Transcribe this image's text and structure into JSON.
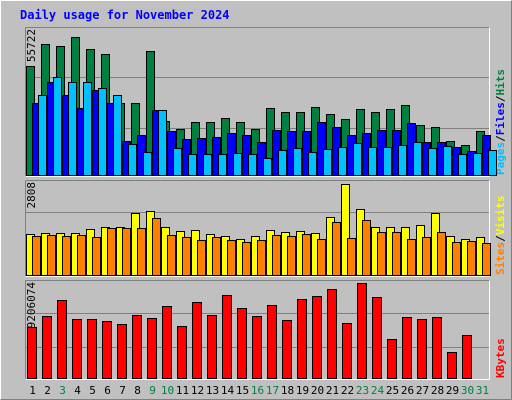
{
  "chart_data": {
    "type": "bar",
    "title": "Daily usage for November 2024",
    "categories": [
      "1",
      "2",
      "3",
      "4",
      "5",
      "6",
      "7",
      "8",
      "9",
      "10",
      "11",
      "12",
      "13",
      "14",
      "15",
      "16",
      "17",
      "18",
      "19",
      "20",
      "21",
      "22",
      "23",
      "24",
      "25",
      "26",
      "27",
      "28",
      "29",
      "30",
      "31"
    ],
    "weekend_days": [
      "3",
      "9",
      "10",
      "16",
      "17",
      "23",
      "24",
      "30",
      "31"
    ],
    "panels": [
      {
        "id": "pages-files-hits",
        "ylabel_parts": [
          "Pages",
          "Files",
          "Hits"
        ],
        "ymax_label": "55722",
        "ylim": [
          0,
          55722
        ],
        "series": [
          {
            "name": "Hits",
            "color": "#008040",
            "values": [
              41900,
              50200,
              49500,
              53000,
              48400,
              46500,
              28000,
              28000,
              47600,
              21000,
              18000,
              20700,
              20700,
              22000,
              20700,
              17900,
              26000,
              24300,
              24300,
              26200,
              23700,
              21800,
              25600,
              24300,
              25600,
              27000,
              19500,
              18800,
              13200,
              11800,
              17200
            ]
          },
          {
            "name": "Files",
            "color": "#0000ff",
            "values": [
              28000,
              36000,
              31000,
              26000,
              33000,
              28000,
              13300,
              15800,
              25000,
              17000,
              14000,
              14600,
              14800,
              16600,
              15500,
              12800,
              17400,
              17100,
              17100,
              20600,
              18800,
              15800,
              16600,
              17500,
              17500,
              20200,
              13100,
              12800,
              11000,
              9600,
              15500
            ]
          },
          {
            "name": "Pages",
            "color": "#00c0ff",
            "values": [
              30800,
              37700,
              35800,
              35800,
              33500,
              30900,
              12300,
              9000,
              25200,
              10600,
              8300,
              8300,
              8500,
              8600,
              8500,
              6900,
              9900,
              10500,
              9300,
              10300,
              11100,
              12600,
              11000,
              11200,
              11800,
              13100,
              10600,
              11300,
              8300,
              8600,
              10100
            ]
          }
        ]
      },
      {
        "id": "visits-sites",
        "ylabel_parts": [
          "Sites",
          "Visits"
        ],
        "ymax_label": "2808",
        "ylim": [
          0,
          2808
        ],
        "series": [
          {
            "name": "Visits",
            "color": "#ffff00",
            "values": [
              1280,
              1310,
              1310,
              1310,
              1420,
              1490,
              1480,
              1890,
              1970,
              1480,
              1350,
              1390,
              1280,
              1210,
              1130,
              1210,
              1380,
              1340,
              1350,
              1290,
              1770,
              2770,
              2020,
              1490,
              1490,
              1480,
              1550,
              1890,
              1210,
              1130,
              1180
            ]
          },
          {
            "name": "Sites",
            "color": "#ff8000",
            "values": [
              1200,
              1230,
              1220,
              1230,
              1190,
              1440,
              1440,
              1440,
              1740,
              1230,
              1180,
              1100,
              1180,
              1090,
              1030,
              1090,
              1250,
              1200,
              1270,
              1110,
              1620,
              1140,
              1700,
              1340,
              1340,
              1130,
              1180,
              1340,
              1030,
              1050,
              990
            ]
          }
        ]
      },
      {
        "id": "kbytes",
        "ylabel_parts": [
          "KBytes"
        ],
        "ymax_label": "9206074",
        "ylim": [
          0,
          9206074
        ],
        "series": [
          {
            "name": "KBytes",
            "color": "#ff0000",
            "values": [
              5000000,
              6050000,
              7530000,
              5740000,
              5740000,
              5560000,
              5310000,
              6130000,
              5830000,
              6990000,
              5070000,
              7380000,
              6130000,
              8100000,
              6830000,
              6050000,
              7100000,
              5650000,
              7630000,
              8000000,
              8620000,
              5340000,
              9200000,
              7830000,
              3830000,
              5940000,
              5740000,
              5940000,
              2610000,
              4190000,
              0
            ]
          }
        ]
      }
    ]
  }
}
